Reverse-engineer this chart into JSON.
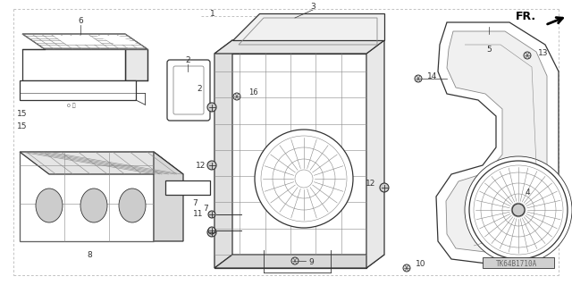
{
  "background_color": "#f5f5f0",
  "diagram_code": "TK64B1710A",
  "fig_width": 6.4,
  "fig_height": 3.19,
  "dpi": 100,
  "line_color": "#333333",
  "light_gray": "#aaaaaa",
  "mid_gray": "#888888",
  "dark_gray": "#555555",
  "hatch_color": "#999999",
  "label_fontsize": 6.5,
  "label_color": "#111111"
}
